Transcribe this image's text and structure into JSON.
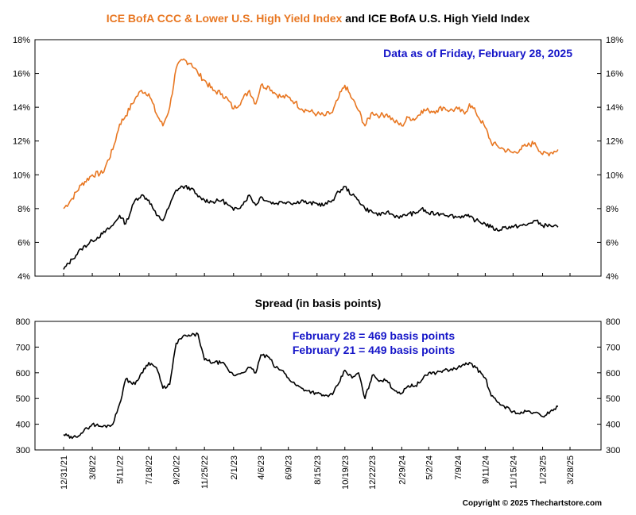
{
  "chart_data": [
    {
      "type": "line",
      "title_part1": "ICE BofA CCC & Lower U.S. High Yield Index",
      "title_part2": " and ICE BofA U.S. High Yield Index",
      "annotation": "Data as of Friday, February 28, 2025",
      "ylim": [
        4,
        18
      ],
      "y_ticks": [
        "4%",
        "6%",
        "8%",
        "10%",
        "12%",
        "14%",
        "16%",
        "18%"
      ],
      "x_tick_labels": [
        "12/31/21",
        "3/8/22",
        "5/11/22",
        "7/18/22",
        "9/20/22",
        "11/25/22",
        "2/1/23",
        "4/6/23",
        "6/9/23",
        "8/15/23",
        "10/19/23",
        "12/22/23",
        "2/29/24",
        "5/2/24",
        "7/9/24",
        "9/11/24",
        "11/15/24",
        "1/23/25",
        "3/28/25"
      ],
      "grid": false,
      "series": [
        {
          "name": "ICE BofA CCC & Lower U.S. High Yield Index",
          "color": "#E87722",
          "x": [
            "12/31/21",
            "1/20/22",
            "2/10/22",
            "3/8/22",
            "4/1/22",
            "4/25/22",
            "5/11/22",
            "5/25/22",
            "6/16/22",
            "7/1/22",
            "7/18/22",
            "8/5/22",
            "8/20/22",
            "9/5/22",
            "9/20/22",
            "10/5/22",
            "10/25/22",
            "11/10/22",
            "11/25/22",
            "12/15/22",
            "1/5/23",
            "1/20/23",
            "2/1/23",
            "2/20/23",
            "3/10/23",
            "3/25/23",
            "4/6/23",
            "4/25/23",
            "5/10/23",
            "5/25/23",
            "6/9/23",
            "6/25/23",
            "7/10/23",
            "7/25/23",
            "8/15/23",
            "9/1/23",
            "9/20/23",
            "10/5/23",
            "10/19/23",
            "11/5/23",
            "11/20/23",
            "12/5/23",
            "12/22/23",
            "1/10/24",
            "1/25/24",
            "2/10/24",
            "2/29/24",
            "3/15/24",
            "4/1/24",
            "4/15/24",
            "5/2/24",
            "5/20/24",
            "6/5/24",
            "6/20/24",
            "7/9/24",
            "7/25/24",
            "8/5/24",
            "8/20/24",
            "9/11/24",
            "9/25/24",
            "10/10/24",
            "10/25/24",
            "11/15/24",
            "12/1/24",
            "12/15/24",
            "1/5/25",
            "1/23/25",
            "2/10/25",
            "2/28/25"
          ],
          "y": [
            8.0,
            8.6,
            9.4,
            10.0,
            10.1,
            11.5,
            13.0,
            13.5,
            14.5,
            15.0,
            14.8,
            13.6,
            12.9,
            14.0,
            16.3,
            16.8,
            16.6,
            16.0,
            15.6,
            15.0,
            14.8,
            14.4,
            13.9,
            14.4,
            15.0,
            14.2,
            15.3,
            15.2,
            14.8,
            14.6,
            14.6,
            14.3,
            13.9,
            13.8,
            13.6,
            13.5,
            13.7,
            14.6,
            15.3,
            14.5,
            13.8,
            12.9,
            13.7,
            13.5,
            13.6,
            13.2,
            12.9,
            13.4,
            13.3,
            13.8,
            13.8,
            13.8,
            14.0,
            13.8,
            13.9,
            13.6,
            14.2,
            13.7,
            12.8,
            11.9,
            11.7,
            11.5,
            11.3,
            11.5,
            11.7,
            11.9,
            11.2,
            11.3,
            11.5
          ]
        },
        {
          "name": "ICE BofA U.S. High Yield Index",
          "color": "#000000",
          "x": [
            "12/31/21",
            "1/20/22",
            "2/10/22",
            "3/8/22",
            "4/1/22",
            "4/25/22",
            "5/11/22",
            "5/25/22",
            "6/16/22",
            "7/1/22",
            "7/18/22",
            "8/5/22",
            "8/20/22",
            "9/5/22",
            "9/20/22",
            "10/5/22",
            "10/25/22",
            "11/10/22",
            "11/25/22",
            "12/15/22",
            "1/5/23",
            "1/20/23",
            "2/1/23",
            "2/20/23",
            "3/10/23",
            "3/25/23",
            "4/6/23",
            "4/25/23",
            "5/10/23",
            "5/25/23",
            "6/9/23",
            "6/25/23",
            "7/10/23",
            "7/25/23",
            "8/15/23",
            "9/1/23",
            "9/20/23",
            "10/5/23",
            "10/19/23",
            "11/5/23",
            "11/20/23",
            "12/5/23",
            "12/22/23",
            "1/10/24",
            "1/25/24",
            "2/10/24",
            "2/29/24",
            "3/15/24",
            "4/1/24",
            "4/15/24",
            "5/2/24",
            "5/20/24",
            "6/5/24",
            "6/20/24",
            "7/9/24",
            "7/25/24",
            "8/5/24",
            "8/20/24",
            "9/11/24",
            "9/25/24",
            "10/10/24",
            "10/25/24",
            "11/15/24",
            "12/1/24",
            "12/15/24",
            "1/5/25",
            "1/23/25",
            "2/10/25",
            "2/28/25"
          ],
          "y": [
            4.4,
            5.0,
            5.6,
            6.1,
            6.5,
            7.0,
            7.6,
            7.1,
            8.5,
            8.8,
            8.5,
            7.6,
            7.3,
            8.2,
            9.1,
            9.3,
            9.2,
            8.7,
            8.5,
            8.4,
            8.5,
            8.2,
            7.9,
            8.2,
            8.8,
            8.2,
            8.7,
            8.4,
            8.3,
            8.4,
            8.4,
            8.3,
            8.5,
            8.3,
            8.3,
            8.2,
            8.5,
            9.0,
            9.3,
            8.8,
            8.5,
            8.0,
            7.8,
            7.6,
            7.8,
            7.6,
            7.5,
            7.7,
            7.7,
            8.0,
            7.7,
            7.7,
            7.7,
            7.6,
            7.5,
            7.6,
            7.5,
            7.3,
            7.1,
            6.9,
            6.7,
            6.9,
            6.9,
            7.0,
            7.0,
            7.3,
            7.0,
            7.0,
            6.9
          ]
        }
      ]
    },
    {
      "type": "line",
      "title": "Spread (in basis points)",
      "annotations": [
        "February 28 = 469 basis points",
        "February 21 = 449 basis points"
      ],
      "ylim": [
        300,
        800
      ],
      "y_ticks": [
        "300",
        "400",
        "500",
        "600",
        "700",
        "800"
      ],
      "grid": false,
      "series": [
        {
          "name": "Spread",
          "color": "#000000",
          "x": [
            "12/31/21",
            "1/20/22",
            "2/10/22",
            "3/8/22",
            "4/1/22",
            "4/25/22",
            "5/11/22",
            "5/25/22",
            "6/16/22",
            "7/1/22",
            "7/18/22",
            "8/5/22",
            "8/20/22",
            "9/5/22",
            "9/20/22",
            "10/5/22",
            "10/25/22",
            "11/10/22",
            "11/25/22",
            "12/15/22",
            "1/5/23",
            "1/20/23",
            "2/1/23",
            "2/20/23",
            "3/10/23",
            "3/25/23",
            "4/6/23",
            "4/25/23",
            "5/10/23",
            "5/25/23",
            "6/9/23",
            "6/25/23",
            "7/10/23",
            "7/25/23",
            "8/15/23",
            "9/1/23",
            "9/20/23",
            "10/5/23",
            "10/19/23",
            "11/5/23",
            "11/20/23",
            "12/5/23",
            "12/22/23",
            "1/10/24",
            "1/25/24",
            "2/10/24",
            "2/29/24",
            "3/15/24",
            "4/1/24",
            "4/15/24",
            "5/2/24",
            "5/20/24",
            "6/5/24",
            "6/20/24",
            "7/9/24",
            "7/25/24",
            "8/5/24",
            "8/20/24",
            "9/11/24",
            "9/25/24",
            "10/10/24",
            "10/25/24",
            "11/15/24",
            "12/1/24",
            "12/15/24",
            "1/5/25",
            "1/23/25",
            "2/10/25",
            "2/28/25"
          ],
          "y": [
            360,
            345,
            365,
            400,
            390,
            400,
            480,
            575,
            555,
            600,
            640,
            620,
            540,
            555,
            715,
            740,
            745,
            750,
            650,
            640,
            640,
            610,
            590,
            600,
            620,
            600,
            670,
            660,
            620,
            610,
            580,
            555,
            540,
            530,
            520,
            510,
            515,
            560,
            610,
            580,
            600,
            500,
            590,
            570,
            570,
            535,
            520,
            550,
            550,
            570,
            600,
            600,
            610,
            610,
            620,
            630,
            640,
            620,
            580,
            510,
            485,
            470,
            450,
            440,
            450,
            445,
            430,
            450,
            469
          ]
        }
      ]
    }
  ],
  "copyright": "Copyright © 2025 Thechartstore.com",
  "colors": {
    "ccc": "#E87722",
    "hy": "#000000",
    "annotation": "#1515C8",
    "axis": "#000000"
  }
}
